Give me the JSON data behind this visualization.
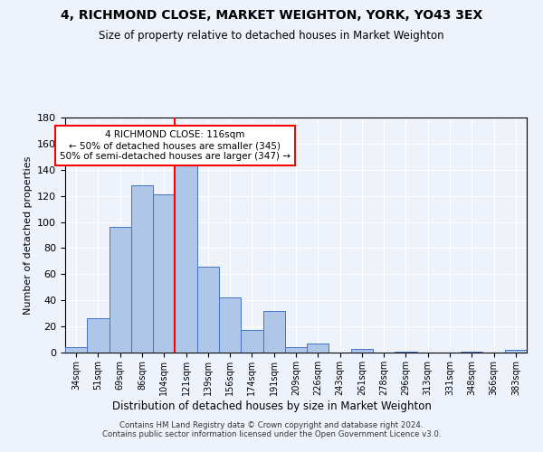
{
  "title": "4, RICHMOND CLOSE, MARKET WEIGHTON, YORK, YO43 3EX",
  "subtitle": "Size of property relative to detached houses in Market Weighton",
  "xlabel": "Distribution of detached houses by size in Market Weighton",
  "ylabel": "Number of detached properties",
  "categories": [
    "34sqm",
    "51sqm",
    "69sqm",
    "86sqm",
    "104sqm",
    "121sqm",
    "139sqm",
    "156sqm",
    "174sqm",
    "191sqm",
    "209sqm",
    "226sqm",
    "243sqm",
    "261sqm",
    "278sqm",
    "296sqm",
    "313sqm",
    "331sqm",
    "348sqm",
    "366sqm",
    "383sqm"
  ],
  "values": [
    4,
    26,
    96,
    128,
    121,
    151,
    66,
    42,
    17,
    32,
    4,
    7,
    0,
    3,
    0,
    1,
    0,
    0,
    1,
    0,
    2
  ],
  "bar_color": "#aec6e8",
  "bar_edge_color": "#4472c4",
  "bar_width": 1.0,
  "ylim": [
    0,
    180
  ],
  "yticks": [
    0,
    20,
    40,
    60,
    80,
    100,
    120,
    140,
    160,
    180
  ],
  "property_label": "4 RICHMOND CLOSE: 116sqm",
  "annotation_line1": "← 50% of detached houses are smaller (345)",
  "annotation_line2": "50% of semi-detached houses are larger (347) →",
  "vline_x": 4.5,
  "footer1": "Contains HM Land Registry data © Crown copyright and database right 2024.",
  "footer2": "Contains public sector information licensed under the Open Government Licence v3.0.",
  "background_color": "#eef2fb",
  "grid_color": "#ffffff"
}
